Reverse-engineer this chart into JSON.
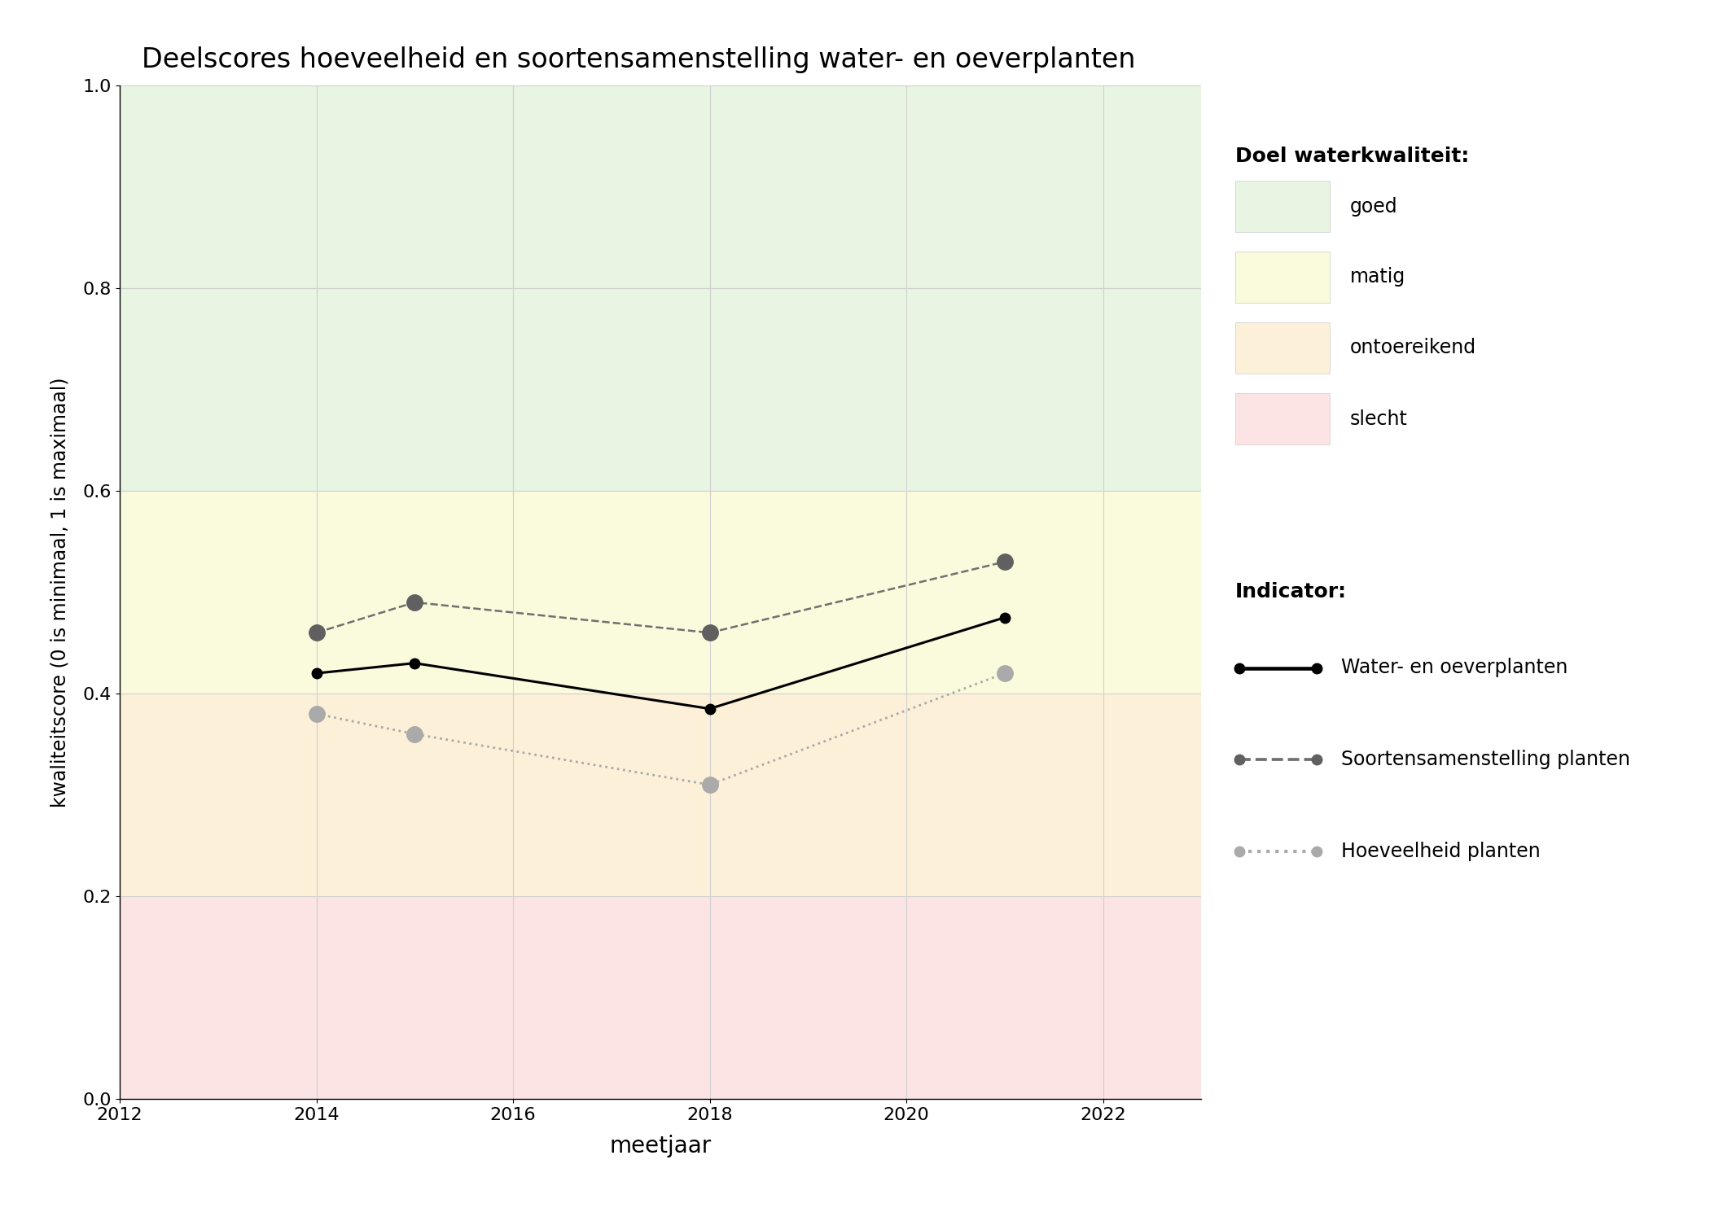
{
  "title": "Deelscores hoeveelheid en soortensamenstelling water- en oeverplanten",
  "xlabel": "meetjaar",
  "ylabel": "kwaliteitscore (0 is minimaal, 1 is maximaal)",
  "xlim": [
    2012,
    2023
  ],
  "ylim": [
    0.0,
    1.0
  ],
  "xticks": [
    2012,
    2014,
    2016,
    2018,
    2020,
    2022
  ],
  "yticks": [
    0.0,
    0.2,
    0.4,
    0.6,
    0.8,
    1.0
  ],
  "bg_color": "#ffffff",
  "zones": [
    {
      "label": "goed",
      "ymin": 0.6,
      "ymax": 1.0,
      "color": "#e8f5e2"
    },
    {
      "label": "matig",
      "ymin": 0.4,
      "ymax": 0.6,
      "color": "#fafadc"
    },
    {
      "label": "ontoereikend",
      "ymin": 0.2,
      "ymax": 0.4,
      "color": "#fdf0d8"
    },
    {
      "label": "slecht",
      "ymin": 0.0,
      "ymax": 0.2,
      "color": "#fce4e4"
    }
  ],
  "line_water_oever": {
    "x": [
      2014,
      2015,
      2018,
      2021
    ],
    "y": [
      0.42,
      0.43,
      0.385,
      0.475
    ],
    "color": "#000000",
    "linestyle": "-",
    "linewidth": 2.2,
    "marker": "o",
    "markersize": 9,
    "markerfacecolor": "#000000",
    "markeredgecolor": "#000000",
    "label": "Water- en oeverplanten"
  },
  "line_soorten": {
    "x": [
      2014,
      2015,
      2018,
      2021
    ],
    "y": [
      0.46,
      0.49,
      0.46,
      0.53
    ],
    "color": "#707070",
    "linestyle": "--",
    "linewidth": 1.8,
    "marker": "o",
    "markersize": 14,
    "markerfacecolor": "#606060",
    "markeredgecolor": "#606060",
    "label": "Soortensamenstelling planten"
  },
  "line_hoeveelheid": {
    "x": [
      2014,
      2015,
      2018,
      2021
    ],
    "y": [
      0.38,
      0.36,
      0.31,
      0.42
    ],
    "color": "#aaaaaa",
    "linestyle": ":",
    "linewidth": 2.0,
    "marker": "o",
    "markersize": 14,
    "markerfacecolor": "#aaaaaa",
    "markeredgecolor": "#aaaaaa",
    "label": "Hoeveelheid planten"
  },
  "legend_title_doel": "Doel waterkwaliteit:",
  "legend_title_indicator": "Indicator:",
  "zone_colors_legend": [
    "#e8f5e2",
    "#fafadc",
    "#fdf0d8",
    "#fce4e4"
  ],
  "zone_labels_legend": [
    "goed",
    "matig",
    "ontoereikend",
    "slecht"
  ]
}
